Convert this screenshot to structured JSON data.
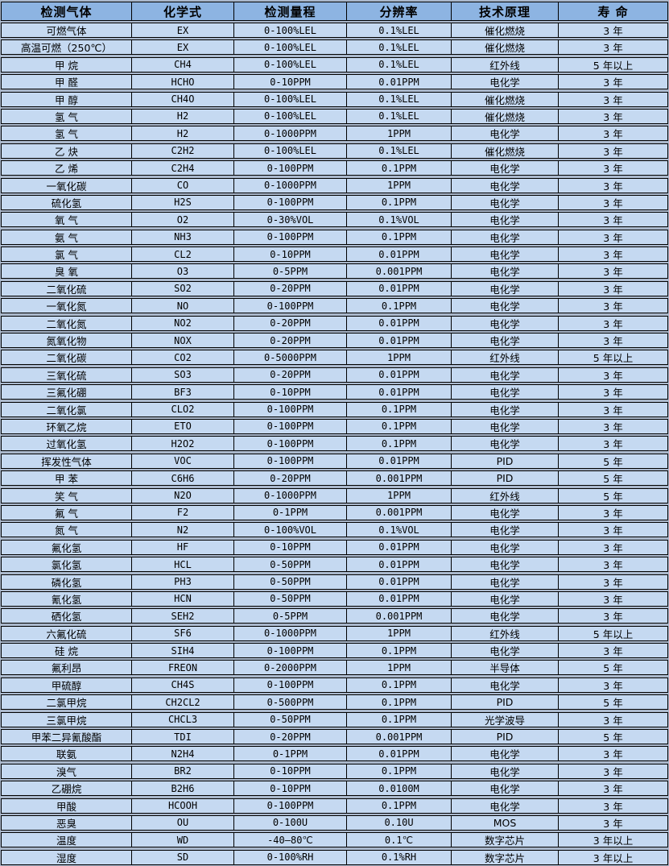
{
  "colors": {
    "page_bg": "#aab8cc",
    "header_bg": "#8db4e2",
    "row_bg": "#c5d9f1",
    "border": "#000000"
  },
  "table": {
    "columns": [
      {
        "key": "gas",
        "label": "检测气体"
      },
      {
        "key": "formula",
        "label": "化学式"
      },
      {
        "key": "range",
        "label": "检测量程"
      },
      {
        "key": "resolution",
        "label": "分辨率"
      },
      {
        "key": "principle",
        "label": "技术原理"
      },
      {
        "key": "lifespan",
        "label": "寿 命"
      }
    ],
    "rows": [
      [
        "可燃气体",
        "EX",
        "0-100%LEL",
        "0.1%LEL",
        "催化燃烧",
        "3 年"
      ],
      [
        "高温可燃（250℃）",
        "EX",
        "0-100%LEL",
        "0.1%LEL",
        "催化燃烧",
        "3 年"
      ],
      [
        "甲 烷",
        "CH4",
        "0-100%LEL",
        "0.1%LEL",
        "红外线",
        "5 年以上"
      ],
      [
        "甲 醛",
        "HCHO",
        "0-10PPM",
        "0.01PPM",
        "电化学",
        "3 年"
      ],
      [
        "甲 醇",
        "CH4O",
        "0-100%LEL",
        "0.1%LEL",
        "催化燃烧",
        "3 年"
      ],
      [
        "氢 气",
        "H2",
        "0-100%LEL",
        "0.1%LEL",
        "催化燃烧",
        "3 年"
      ],
      [
        "氢 气",
        "H2",
        "0-1000PPM",
        "1PPM",
        "电化学",
        "3 年"
      ],
      [
        "乙 炔",
        "C2H2",
        "0-100%LEL",
        "0.1%LEL",
        "催化燃烧",
        "3 年"
      ],
      [
        "乙 烯",
        "C2H4",
        "0-100PPM",
        "0.1PPM",
        "电化学",
        "3 年"
      ],
      [
        "一氧化碳",
        "CO",
        "0-1000PPM",
        "1PPM",
        "电化学",
        "3 年"
      ],
      [
        "硫化氢",
        "H2S",
        "0-100PPM",
        "0.1PPM",
        "电化学",
        "3 年"
      ],
      [
        "氧 气",
        "O2",
        "0-30%VOL",
        "0.1%VOL",
        "电化学",
        "3 年"
      ],
      [
        "氨 气",
        "NH3",
        "0-100PPM",
        "0.1PPM",
        "电化学",
        "3 年"
      ],
      [
        "氯 气",
        "CL2",
        "0-10PPM",
        "0.01PPM",
        "电化学",
        "3 年"
      ],
      [
        "臭 氧",
        "O3",
        "0-5PPM",
        "0.001PPM",
        "电化学",
        "3 年"
      ],
      [
        "二氧化硫",
        "SO2",
        "0-20PPM",
        "0.01PPM",
        "电化学",
        "3 年"
      ],
      [
        "一氧化氮",
        "NO",
        "0-100PPM",
        "0.1PPM",
        "电化学",
        "3 年"
      ],
      [
        "二氧化氮",
        "NO2",
        "0-20PPM",
        "0.01PPM",
        "电化学",
        "3 年"
      ],
      [
        "氮氧化物",
        "NOX",
        "0-20PPM",
        "0.01PPM",
        "电化学",
        "3 年"
      ],
      [
        "二氧化碳",
        "CO2",
        "0-5000PPM",
        "1PPM",
        "红外线",
        "5 年以上"
      ],
      [
        "三氧化硫",
        "SO3",
        "0-20PPM",
        "0.01PPM",
        "电化学",
        "3 年"
      ],
      [
        "三氟化硼",
        "BF3",
        "0-10PPM",
        "0.01PPM",
        "电化学",
        "3 年"
      ],
      [
        "二氧化氯",
        "CLO2",
        "0-100PPM",
        "0.1PPM",
        "电化学",
        "3 年"
      ],
      [
        "环氧乙烷",
        "ETO",
        "0-100PPM",
        "0.1PPM",
        "电化学",
        "3 年"
      ],
      [
        "过氧化氢",
        "H2O2",
        "0-100PPM",
        "0.1PPM",
        "电化学",
        "3 年"
      ],
      [
        "挥发性气体",
        "VOC",
        "0-100PPM",
        "0.01PPM",
        "PID",
        "5 年"
      ],
      [
        "甲 苯",
        "C6H6",
        "0-20PPM",
        "0.001PPM",
        "PID",
        "5 年"
      ],
      [
        "笑 气",
        "N2O",
        "0-1000PPM",
        "1PPM",
        "红外线",
        "5 年"
      ],
      [
        "氟 气",
        "F2",
        "0-1PPM",
        "0.001PPM",
        "电化学",
        "3 年"
      ],
      [
        "氮 气",
        "N2",
        "0-100%VOL",
        "0.1%VOL",
        "电化学",
        "3 年"
      ],
      [
        "氟化氢",
        "HF",
        "0-10PPM",
        "0.01PPM",
        "电化学",
        "3 年"
      ],
      [
        "氯化氢",
        "HCL",
        "0-50PPM",
        "0.01PPM",
        "电化学",
        "3 年"
      ],
      [
        "磷化氢",
        "PH3",
        "0-50PPM",
        "0.01PPM",
        "电化学",
        "3 年"
      ],
      [
        "氰化氢",
        "HCN",
        "0-50PPM",
        "0.01PPM",
        "电化学",
        "3 年"
      ],
      [
        "硒化氢",
        "SEH2",
        "0-5PPM",
        "0.001PPM",
        "电化学",
        "3 年"
      ],
      [
        "六氟化硫",
        "SF6",
        "0-1000PPM",
        "1PPM",
        "红外线",
        "5 年以上"
      ],
      [
        "硅 烷",
        "SIH4",
        "0-100PPM",
        "0.1PPM",
        "电化学",
        "3 年"
      ],
      [
        "氟利昂",
        "FREON",
        "0-2000PPM",
        "1PPM",
        "半导体",
        "5 年"
      ],
      [
        "甲硫醇",
        "CH4S",
        "0-100PPM",
        "0.1PPM",
        "电化学",
        "3 年"
      ],
      [
        "二氯甲烷",
        "CH2CL2",
        "0-500PPM",
        "0.1PPM",
        "PID",
        "5 年"
      ],
      [
        "三氯甲烷",
        "CHCL3",
        "0-50PPM",
        "0.1PPM",
        "光学波导",
        "3 年"
      ],
      [
        "甲苯二异氰酸酯",
        "TDI",
        "0-20PPM",
        "0.001PPM",
        "PID",
        "5 年"
      ],
      [
        "联氨",
        "N2H4",
        "0-1PPM",
        "0.01PPM",
        "电化学",
        "3 年"
      ],
      [
        "溴气",
        "BR2",
        "0-10PPM",
        "0.1PPM",
        "电化学",
        "3 年"
      ],
      [
        "乙硼烷",
        "B2H6",
        "0-10PPM",
        "0.0100M",
        "电化学",
        "3 年"
      ],
      [
        "甲酸",
        "HCOOH",
        "0-100PPM",
        "0.1PPM",
        "电化学",
        "3 年"
      ],
      [
        "恶臭",
        "OU",
        "0-100U",
        "0.10U",
        "MOS",
        "3 年"
      ],
      [
        "温度",
        "WD",
        "-40—80℃",
        "0.1℃",
        "数字芯片",
        "3 年以上"
      ],
      [
        "湿度",
        "SD",
        "0-100%RH",
        "0.1%RH",
        "数字芯片",
        "3 年以上"
      ]
    ]
  }
}
